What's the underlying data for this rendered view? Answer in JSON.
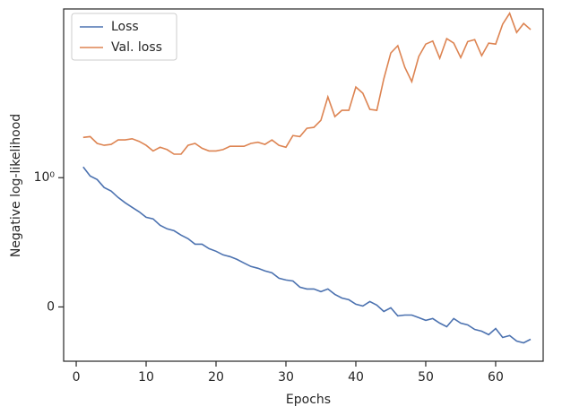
{
  "chart_data": {
    "type": "line",
    "xlabel": "Epochs",
    "ylabel": "Negative log-likelihood",
    "yscale": "symlog",
    "linthresh": 1,
    "x": [
      1,
      2,
      3,
      4,
      5,
      6,
      7,
      8,
      9,
      10,
      11,
      12,
      13,
      14,
      15,
      16,
      17,
      18,
      19,
      20,
      21,
      22,
      23,
      24,
      25,
      26,
      27,
      28,
      29,
      30,
      31,
      32,
      33,
      34,
      35,
      36,
      37,
      38,
      39,
      40,
      41,
      42,
      43,
      44,
      45,
      46,
      47,
      48,
      49,
      50,
      51,
      52,
      53,
      54,
      55,
      56,
      57,
      58,
      59,
      60,
      61,
      62,
      63,
      64,
      65
    ],
    "series": [
      {
        "name": "Loss",
        "color": "#4c72b0",
        "values": [
          1.21,
          1.03,
          0.986,
          0.924,
          0.896,
          0.847,
          0.806,
          0.771,
          0.736,
          0.694,
          0.681,
          0.632,
          0.604,
          0.59,
          0.556,
          0.528,
          0.486,
          0.486,
          0.451,
          0.431,
          0.403,
          0.389,
          0.368,
          0.34,
          0.313,
          0.299,
          0.278,
          0.264,
          0.222,
          0.208,
          0.201,
          0.153,
          0.139,
          0.139,
          0.118,
          0.139,
          0.097,
          0.069,
          0.056,
          0.021,
          0.007,
          0.042,
          0.014,
          -0.035,
          -0.007,
          -0.069,
          -0.063,
          -0.063,
          -0.083,
          -0.104,
          -0.09,
          -0.125,
          -0.153,
          -0.09,
          -0.125,
          -0.139,
          -0.174,
          -0.188,
          -0.215,
          -0.167,
          -0.236,
          -0.222,
          -0.264,
          -0.278,
          -0.25
        ]
      },
      {
        "name": "Val. loss",
        "color": "#dd8452",
        "values": [
          2.05,
          2.08,
          1.84,
          1.78,
          1.81,
          1.96,
          1.96,
          2.0,
          1.91,
          1.78,
          1.61,
          1.72,
          1.65,
          1.52,
          1.52,
          1.78,
          1.84,
          1.69,
          1.61,
          1.61,
          1.65,
          1.75,
          1.75,
          1.75,
          1.84,
          1.88,
          1.81,
          1.96,
          1.78,
          1.72,
          2.12,
          2.08,
          2.41,
          2.45,
          2.78,
          4.22,
          2.97,
          3.32,
          3.32,
          5.03,
          4.5,
          3.38,
          3.32,
          5.81,
          9.23,
          10.5,
          7.15,
          5.53,
          8.67,
          10.8,
          11.4,
          8.4,
          11.9,
          11.0,
          8.5,
          11.3,
          11.7,
          8.79,
          11.0,
          10.8,
          15.4,
          18.7,
          13.3,
          15.6,
          14.0
        ]
      }
    ],
    "xlim": [
      -1.8,
      66.8
    ],
    "xticks": [
      0,
      10,
      20,
      30,
      40,
      50,
      60
    ],
    "ylim": [
      -0.42,
      20.2
    ],
    "yticks": [
      0,
      {
        "value": 1,
        "label": "10⁰"
      }
    ],
    "legend": "upper left"
  }
}
